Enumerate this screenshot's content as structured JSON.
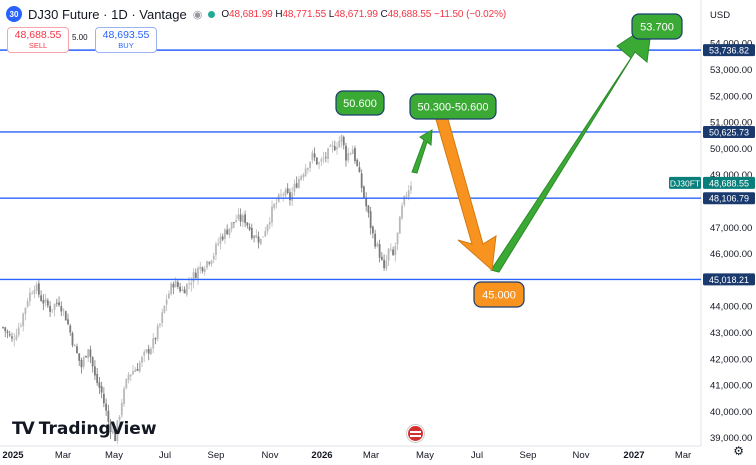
{
  "header": {
    "symbol_badge": "30",
    "title": "DJ30 Future · 1D · Vantage",
    "open_label": "O",
    "open": "48,681.99",
    "high_label": "H",
    "high": "48,771.55",
    "low_label": "L",
    "low": "48,671.99",
    "close_label": "C",
    "close": "48,688.55",
    "change": "−11.50 (−0.02%)"
  },
  "trade": {
    "sell_price": "48,688.55",
    "sell_label": "SELL",
    "spread": "5.00",
    "buy_price": "48,693.55",
    "buy_label": "BUY"
  },
  "branding": {
    "logo_mark": "TV",
    "logo_text": "TradingView"
  },
  "colors": {
    "level_line": "#2962ff",
    "up_candle": "#b9b9b9",
    "green_arrow": "#3aaa35",
    "orange_arrow": "#f7931e",
    "price_tag": "#1a3a6e",
    "current_tag": "#087f7a"
  },
  "chart_data": {
    "type": "candlestick",
    "currency_label": "USD",
    "symbol_tag": "DJ30FT",
    "current_price": "48,688.55",
    "ylim": [
      38500,
      55000
    ],
    "y_ticks": [
      "39,000.00",
      "40,000.00",
      "41,000.00",
      "42,000.00",
      "43,000.00",
      "44,000.00",
      "46,000.00",
      "47,000.00",
      "49,000.00",
      "50,000.00",
      "51,000.00",
      "52,000.00",
      "53,000.00",
      "54,000.00"
    ],
    "x_ticks": [
      "2025",
      "Mar",
      "May",
      "Jul",
      "Sep",
      "Nov",
      "2026",
      "Mar",
      "May",
      "Jul",
      "Sep",
      "Nov",
      "2027",
      "Mar"
    ],
    "levels": [
      {
        "value": 53736.82,
        "label": "53,736.82"
      },
      {
        "value": 50625.73,
        "label": "50,625.73"
      },
      {
        "value": 48106.79,
        "label": "48,106.79"
      },
      {
        "value": 45018.21,
        "label": "45,018.21"
      }
    ],
    "callouts": [
      "50.600",
      "50.300-50.600",
      "45.000",
      "53.700"
    ],
    "price_path": [
      [
        0,
        43200
      ],
      [
        4,
        42700
      ],
      [
        8,
        43400
      ],
      [
        11,
        44300
      ],
      [
        14,
        44800
      ],
      [
        17,
        44300
      ],
      [
        21,
        43900
      ],
      [
        25,
        44200
      ],
      [
        28,
        43600
      ],
      [
        32,
        42400
      ],
      [
        35,
        41700
      ],
      [
        38,
        42500
      ],
      [
        41,
        41300
      ],
      [
        44,
        40700
      ],
      [
        47,
        39600
      ],
      [
        50,
        39000
      ],
      [
        53,
        40400
      ],
      [
        56,
        41400
      ],
      [
        60,
        41700
      ],
      [
        63,
        42100
      ],
      [
        67,
        42600
      ],
      [
        70,
        43300
      ],
      [
        73,
        44300
      ],
      [
        76,
        44900
      ],
      [
        80,
        44600
      ],
      [
        83,
        44900
      ],
      [
        87,
        45400
      ],
      [
        90,
        45600
      ],
      [
        94,
        46000
      ],
      [
        97,
        46600
      ],
      [
        100,
        46900
      ],
      [
        104,
        47300
      ],
      [
        108,
        47300
      ],
      [
        111,
        46800
      ],
      [
        115,
        46500
      ],
      [
        118,
        47200
      ],
      [
        121,
        47800
      ],
      [
        125,
        48300
      ],
      [
        128,
        48100
      ],
      [
        131,
        48700
      ],
      [
        135,
        49300
      ],
      [
        138,
        49700
      ],
      [
        141,
        49400
      ],
      [
        145,
        49800
      ],
      [
        148,
        50100
      ],
      [
        151,
        50400
      ],
      [
        153,
        49700
      ],
      [
        156,
        50000
      ],
      [
        159,
        48900
      ],
      [
        162,
        47800
      ],
      [
        165,
        46700
      ],
      [
        168,
        46000
      ],
      [
        170,
        45300
      ],
      [
        172,
        46100
      ],
      [
        174,
        45900
      ],
      [
        176,
        46700
      ],
      [
        178,
        47700
      ],
      [
        180,
        48300
      ],
      [
        182,
        48690
      ]
    ],
    "path_t_range": [
      0,
      290
    ]
  }
}
